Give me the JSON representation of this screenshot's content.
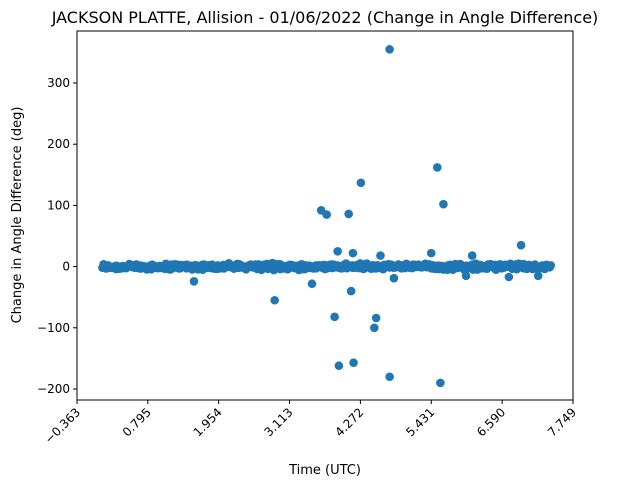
{
  "chart_data": {
    "type": "scatter",
    "title": "JACKSON PLATTE, Allision - 01/06/2022 (Change in Angle Difference)",
    "xlabel": "Time (UTC)",
    "ylabel": "Change in Angle Difference (deg)",
    "xlim": [
      -0.363,
      7.749
    ],
    "ylim": [
      -218,
      385
    ],
    "x_ticks": [
      -0.363,
      0.795,
      1.954,
      3.113,
      4.272,
      5.431,
      6.59,
      7.749
    ],
    "x_tick_labels": [
      "−0.363",
      "0.795",
      "1.954",
      "3.113",
      "4.272",
      "5.431",
      "6.590",
      "7.749"
    ],
    "y_ticks": [
      -200,
      -100,
      0,
      100,
      200,
      300
    ],
    "y_tick_labels": [
      "−200",
      "−100",
      "0",
      "100",
      "200",
      "300"
    ],
    "marker_color": "#1f77b4",
    "grid": false,
    "outliers": [
      {
        "x": 4.75,
        "y": 355
      },
      {
        "x": 5.53,
        "y": 162
      },
      {
        "x": 5.63,
        "y": 102
      },
      {
        "x": 4.28,
        "y": 137
      },
      {
        "x": 3.63,
        "y": 92
      },
      {
        "x": 3.72,
        "y": 85
      },
      {
        "x": 4.08,
        "y": 86
      },
      {
        "x": 3.9,
        "y": 25
      },
      {
        "x": 4.15,
        "y": 22
      },
      {
        "x": 5.43,
        "y": 22
      },
      {
        "x": 6.9,
        "y": 35
      },
      {
        "x": 6.1,
        "y": 18
      },
      {
        "x": 4.6,
        "y": 18
      },
      {
        "x": 1.55,
        "y": -24
      },
      {
        "x": 2.87,
        "y": -55
      },
      {
        "x": 3.48,
        "y": -28
      },
      {
        "x": 3.85,
        "y": -82
      },
      {
        "x": 4.12,
        "y": -40
      },
      {
        "x": 3.92,
        "y": -162
      },
      {
        "x": 4.16,
        "y": -157
      },
      {
        "x": 4.5,
        "y": -100
      },
      {
        "x": 4.53,
        "y": -84
      },
      {
        "x": 4.82,
        "y": -19
      },
      {
        "x": 4.75,
        "y": -180
      },
      {
        "x": 5.58,
        "y": -190
      },
      {
        "x": 6.0,
        "y": -15
      },
      {
        "x": 6.7,
        "y": -17
      },
      {
        "x": 7.18,
        "y": -15
      }
    ],
    "dense_band": {
      "x_range": [
        0.05,
        7.38
      ],
      "y_halfwidth": 6,
      "count": 520
    }
  }
}
